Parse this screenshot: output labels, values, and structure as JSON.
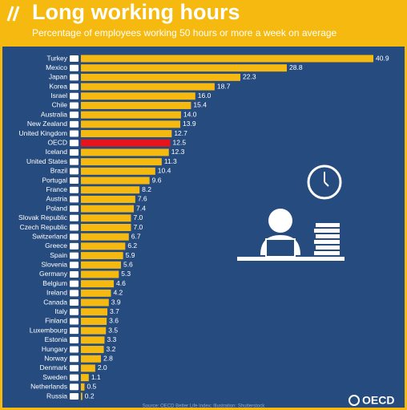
{
  "chart_data": {
    "type": "bar",
    "orientation": "horizontal",
    "title": "Long working hours",
    "subtitle": "Percentage of employees working 50 hours or more a week on average",
    "source": "Source: OECD Better Life Index; Illustration: Shutterstock",
    "logo": "OECD",
    "categories": [
      "Turkey",
      "Mexico",
      "Japan",
      "Korea",
      "Israel",
      "Chile",
      "Australia",
      "New Zealand",
      "United Kingdom",
      "OECD",
      "Iceland",
      "United States",
      "Brazil",
      "Portugal",
      "France",
      "Austria",
      "Poland",
      "Slovak Republic",
      "Czech Republic",
      "Switzerland",
      "Greece",
      "Spain",
      "Slovenia",
      "Germany",
      "Belgium",
      "Ireland",
      "Canada",
      "Italy",
      "Finland",
      "Luxembourg",
      "Estonia",
      "Hungary",
      "Norway",
      "Denmark",
      "Sweden",
      "Netherlands",
      "Russia"
    ],
    "values": [
      40.9,
      28.8,
      22.3,
      18.7,
      16.0,
      15.4,
      14.0,
      13.9,
      12.7,
      12.5,
      12.3,
      11.3,
      10.4,
      9.6,
      8.2,
      7.6,
      7.4,
      7.0,
      7.0,
      6.7,
      6.2,
      5.9,
      5.6,
      5.3,
      4.6,
      4.2,
      3.9,
      3.7,
      3.6,
      3.5,
      3.3,
      3.2,
      2.8,
      2.0,
      1.1,
      0.5,
      0.2
    ],
    "value_labels": [
      "40.9",
      "28.8",
      "22.3",
      "18.7",
      "16.0",
      "15.4",
      "14.0",
      "13.9",
      "12.7",
      "12.5",
      "12.3",
      "11.3",
      "10.4",
      "9.6",
      "8.2",
      "7.6",
      "7.4",
      "7.0",
      "7.0",
      "6.7",
      "6.2",
      "5.9",
      "5.6",
      "5.3",
      "4.6",
      "4.2",
      "3.9",
      "3.7",
      "3.6",
      "3.5",
      "3.3",
      "3.2",
      "2.8",
      "2.0",
      "1.1",
      "0.5",
      "0.2"
    ],
    "color": "#f6b90f",
    "highlight": {
      "index": 9,
      "color": "#e8141c"
    }
  }
}
